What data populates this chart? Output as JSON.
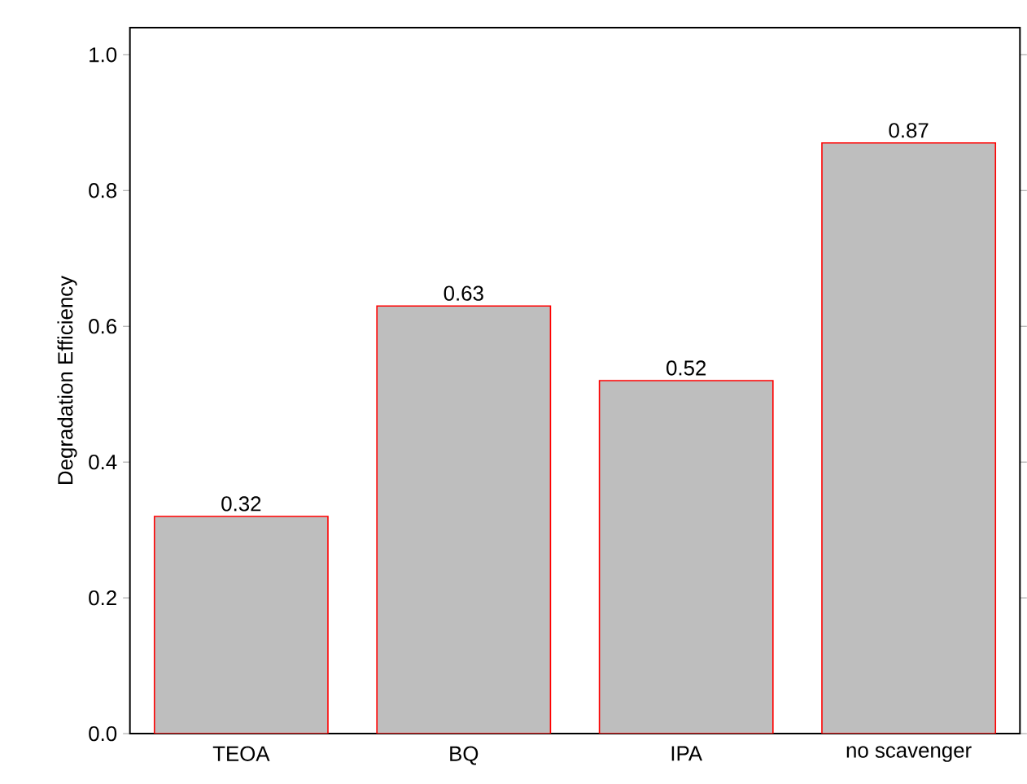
{
  "chart_data": {
    "type": "bar",
    "ylabel": "Degradation Efficiency",
    "categories": [
      "TEOA",
      "BQ",
      "IPA",
      "no scavenger"
    ],
    "values": [
      0.32,
      0.63,
      0.52,
      0.87
    ],
    "color": "#bebebe",
    "ylim": [
      0,
      1.04
    ],
    "yticks": [
      {
        "value": 0,
        "label": "0.0"
      },
      {
        "value": 0.2,
        "label": "0.2"
      },
      {
        "value": 0.4,
        "label": "0.4"
      },
      {
        "value": 0.6,
        "label": "0.6"
      },
      {
        "value": 0.8,
        "label": "0.8"
      },
      {
        "value": 1.0,
        "label": "1.0"
      }
    ],
    "data_labels": true
  }
}
